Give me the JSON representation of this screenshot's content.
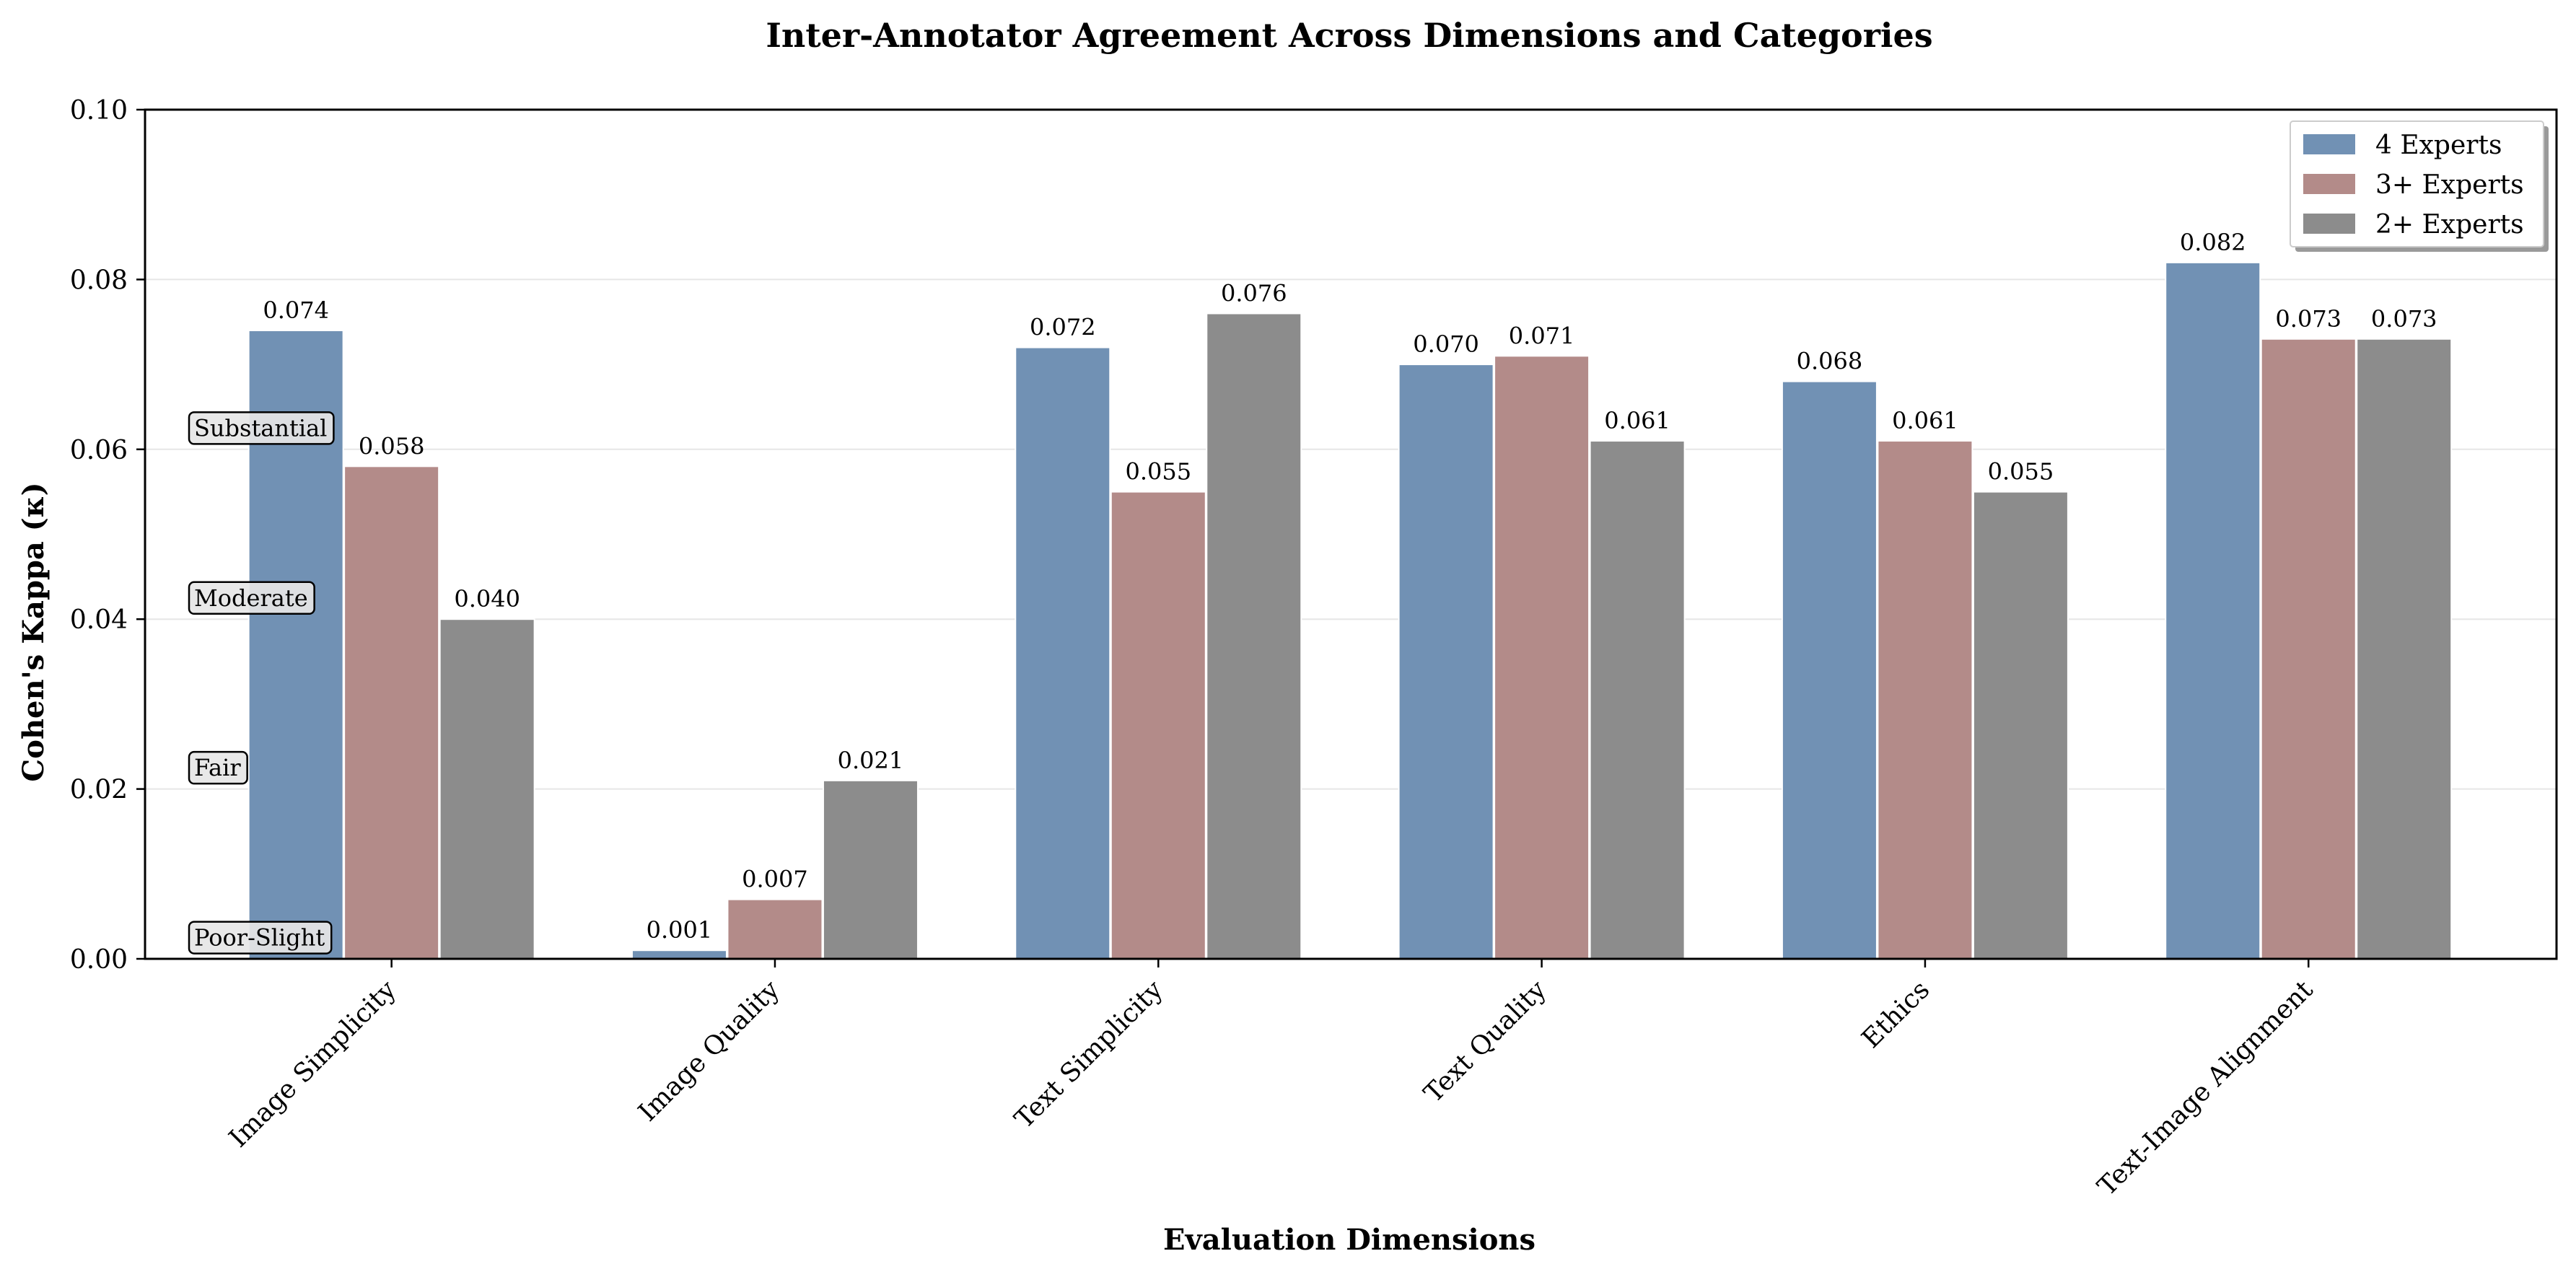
{
  "chart_data": {
    "type": "bar",
    "title": "Inter-Annotator Agreement Across Dimensions and Categories",
    "xlabel": "Evaluation Dimensions",
    "ylabel": "Cohen's Kappa (κ)",
    "ylim": [
      0,
      0.1
    ],
    "yticks": [
      "0.00",
      "0.02",
      "0.04",
      "0.06",
      "0.08",
      "0.10"
    ],
    "grid": true,
    "legend_position": "top-right",
    "categories": [
      "Image Simplicity",
      "Image Quality",
      "Text Simplicity",
      "Text Quality",
      "Ethics",
      "Text-Image Alignment"
    ],
    "series": [
      {
        "name": "4 Experts",
        "color": "#7191b4",
        "values": [
          0.074,
          0.001,
          0.072,
          0.07,
          0.068,
          0.082
        ],
        "labels": [
          "0.074",
          "0.001",
          "0.072",
          "0.070",
          "0.068",
          "0.082"
        ]
      },
      {
        "name": "3+ Experts",
        "color": "#b38b89",
        "values": [
          0.058,
          0.007,
          0.055,
          0.071,
          0.061,
          0.073
        ],
        "labels": [
          "0.058",
          "0.007",
          "0.055",
          "0.071",
          "0.061",
          "0.073"
        ]
      },
      {
        "name": "2+ Experts",
        "color": "#8c8c8c",
        "values": [
          0.04,
          0.021,
          0.076,
          0.061,
          0.055,
          0.073
        ],
        "labels": [
          "0.040",
          "0.021",
          "0.076",
          "0.061",
          "0.055",
          "0.073"
        ]
      }
    ],
    "annotations": [
      {
        "text": "Substantial",
        "y": 0.0625
      },
      {
        "text": "Moderate",
        "y": 0.0425
      },
      {
        "text": "Fair",
        "y": 0.0225
      },
      {
        "text": "Poor-Slight",
        "y": 0.0025
      }
    ]
  }
}
